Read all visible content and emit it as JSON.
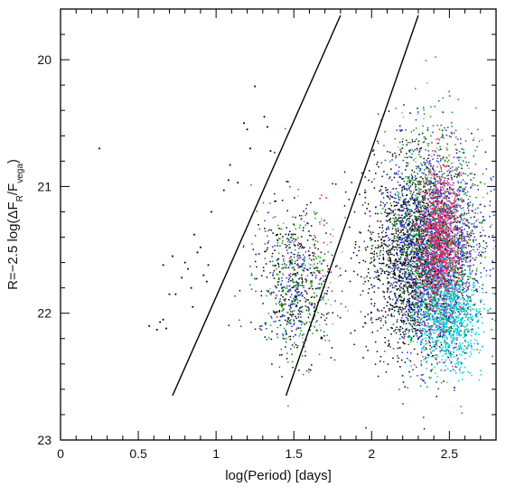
{
  "chart_data": {
    "type": "scatter",
    "title": "",
    "xlabel": "log(Period)  [days]",
    "ylabel": "R=−2.5 log(ΔF_R/F_vega)",
    "ylabel_parts": {
      "prefix": "R=−2.5 log(ΔF",
      "sub1": "R",
      "mid": "/F",
      "sub2": "vega",
      "suffix": ")"
    },
    "xlim": [
      0,
      2.8
    ],
    "ylim": [
      23,
      19.6
    ],
    "y_inverted": true,
    "grid": false,
    "legend": "none",
    "x_ticks": [
      {
        "value": 0,
        "label": "0"
      },
      {
        "value": 0.5,
        "label": "0.5"
      },
      {
        "value": 1,
        "label": "1"
      },
      {
        "value": 1.5,
        "label": "1.5"
      },
      {
        "value": 2,
        "label": "2"
      },
      {
        "value": 2.5,
        "label": "2.5"
      }
    ],
    "y_ticks": [
      {
        "value": 20,
        "label": "20"
      },
      {
        "value": 21,
        "label": "21"
      },
      {
        "value": 22,
        "label": "22"
      },
      {
        "value": 23,
        "label": "23"
      }
    ],
    "lines": [
      {
        "x": [
          0.72,
          1.8
        ],
        "y": [
          22.65,
          19.65
        ]
      },
      {
        "x": [
          1.45,
          2.3
        ],
        "y": [
          22.65,
          19.65
        ]
      }
    ],
    "sparse_points": [
      [
        0.25,
        20.7
      ],
      [
        0.57,
        22.1
      ],
      [
        0.62,
        22.13
      ],
      [
        0.64,
        22.07
      ],
      [
        0.66,
        22.05
      ],
      [
        0.68,
        22.12
      ],
      [
        0.7,
        21.85
      ],
      [
        0.74,
        21.85
      ],
      [
        0.72,
        21.55
      ],
      [
        0.66,
        21.62
      ],
      [
        0.78,
        21.72
      ],
      [
        0.8,
        21.6
      ],
      [
        0.82,
        21.65
      ],
      [
        0.84,
        21.8
      ],
      [
        0.85,
        21.95
      ],
      [
        0.86,
        21.38
      ],
      [
        0.88,
        21.52
      ],
      [
        0.9,
        21.48
      ],
      [
        0.92,
        21.7
      ],
      [
        0.94,
        21.75
      ],
      [
        0.95,
        21.62
      ],
      [
        0.97,
        21.2
      ],
      [
        1.05,
        21.03
      ],
      [
        1.08,
        20.95
      ],
      [
        1.09,
        20.83
      ],
      [
        1.14,
        20.97
      ],
      [
        1.18,
        20.5
      ],
      [
        1.2,
        20.55
      ],
      [
        1.22,
        20.7
      ],
      [
        1.25,
        20.21
      ],
      [
        1.31,
        20.45
      ],
      [
        1.33,
        20.53
      ],
      [
        1.35,
        20.72
      ]
    ],
    "clusters": [
      {
        "color": "#000000",
        "n": 320,
        "cx": 1.5,
        "cy": 21.75,
        "sx": 0.12,
        "sy": 0.3
      },
      {
        "color": "#00a000",
        "n": 240,
        "cx": 1.52,
        "cy": 21.75,
        "sx": 0.13,
        "sy": 0.3
      },
      {
        "color": "#1f2fd0",
        "n": 200,
        "cx": 1.5,
        "cy": 21.8,
        "sx": 0.13,
        "sy": 0.28
      },
      {
        "color": "#e0103a",
        "n": 35,
        "cx": 1.56,
        "cy": 21.55,
        "sx": 0.1,
        "sy": 0.25
      },
      {
        "color": "#9aa0a6",
        "n": 35,
        "cx": 1.58,
        "cy": 21.7,
        "sx": 0.12,
        "sy": 0.28
      },
      {
        "color": "#000000",
        "n": 1700,
        "cx": 2.28,
        "cy": 21.55,
        "sx": 0.16,
        "sy": 0.38
      },
      {
        "color": "#1f2fd0",
        "n": 1500,
        "cx": 2.4,
        "cy": 21.5,
        "sx": 0.16,
        "sy": 0.4
      },
      {
        "color": "#00a000",
        "n": 900,
        "cx": 2.4,
        "cy": 21.4,
        "sx": 0.15,
        "sy": 0.42
      },
      {
        "color": "#7a30c0",
        "n": 500,
        "cx": 2.43,
        "cy": 21.55,
        "sx": 0.1,
        "sy": 0.35
      },
      {
        "color": "#ff2060",
        "n": 750,
        "cx": 2.44,
        "cy": 21.45,
        "sx": 0.07,
        "sy": 0.3
      },
      {
        "color": "#00d0e0",
        "n": 750,
        "cx": 2.5,
        "cy": 22.05,
        "sx": 0.1,
        "sy": 0.2
      },
      {
        "color": "#9aa0a6",
        "n": 200,
        "cx": 2.45,
        "cy": 21.4,
        "sx": 0.15,
        "sy": 0.45
      }
    ]
  }
}
